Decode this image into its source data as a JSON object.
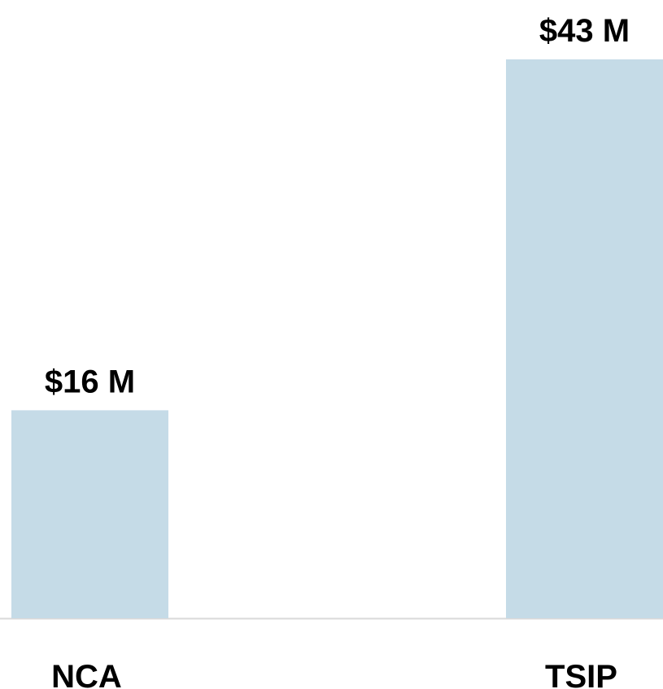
{
  "chart_data": {
    "type": "bar",
    "categories": [
      "NCA",
      "TSIP"
    ],
    "values": [
      16,
      43
    ],
    "value_labels": [
      "$16 M",
      "$43 M"
    ],
    "color": "#c5dbe7"
  }
}
